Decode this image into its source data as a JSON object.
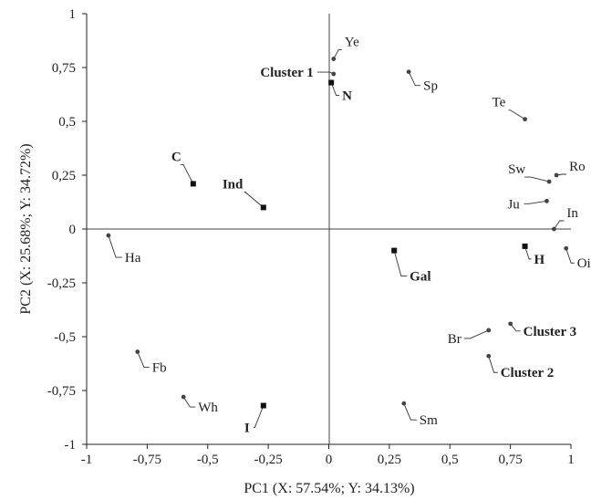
{
  "chart_data": {
    "type": "scatter",
    "title": "",
    "xlabel": "PC1 (X: 57.54%; Y: 34.13%)",
    "ylabel": "PC2 (X: 25.68%; Y: 34.72%)",
    "xlim": [
      -1,
      1
    ],
    "ylim": [
      -1,
      1
    ],
    "x_ticks": [
      "-1",
      "-0,75",
      "-0,5",
      "-0,25",
      "0",
      "0,25",
      "0,5",
      "0,75",
      "1"
    ],
    "y_ticks": [
      "-1",
      "-0,75",
      "-0,5",
      "-0,25",
      "0",
      "0,25",
      "0,5",
      "0,75",
      "1"
    ],
    "grid": false,
    "legend": "none",
    "series": [
      {
        "marker": "circle",
        "points": [
          {
            "label": "Ye",
            "x": 0.02,
            "y": 0.79
          },
          {
            "label": "Sp",
            "x": 0.33,
            "y": 0.73
          },
          {
            "label": "Te",
            "x": 0.81,
            "y": 0.51
          },
          {
            "label": "Ro",
            "x": 0.94,
            "y": 0.25
          },
          {
            "label": "Sw",
            "x": 0.91,
            "y": 0.22
          },
          {
            "label": "Ju",
            "x": 0.9,
            "y": 0.13
          },
          {
            "label": "In",
            "x": 0.93,
            "y": 0.0
          },
          {
            "label": "Oi",
            "x": 0.98,
            "y": -0.09
          },
          {
            "label": "Ha",
            "x": -0.91,
            "y": -0.03
          },
          {
            "label": "Br",
            "x": 0.66,
            "y": -0.47
          },
          {
            "label": "Fb",
            "x": -0.79,
            "y": -0.57
          },
          {
            "label": "Wh",
            "x": -0.6,
            "y": -0.78
          },
          {
            "label": "Sm",
            "x": 0.31,
            "y": -0.81
          }
        ]
      },
      {
        "marker": "square",
        "points": [
          {
            "label": "N",
            "x": 0.01,
            "y": 0.68
          },
          {
            "label": "C",
            "x": -0.56,
            "y": 0.21
          },
          {
            "label": "Ind",
            "x": -0.27,
            "y": 0.1
          },
          {
            "label": "Gal",
            "x": 0.27,
            "y": -0.1
          },
          {
            "label": "H",
            "x": 0.81,
            "y": -0.08
          },
          {
            "label": "I",
            "x": -0.27,
            "y": -0.82
          }
        ]
      },
      {
        "marker": "circle",
        "points": [
          {
            "label": "Cluster 1",
            "x": 0.02,
            "y": 0.72
          },
          {
            "label": "Cluster 3",
            "x": 0.75,
            "y": -0.44
          },
          {
            "label": "Cluster 2",
            "x": 0.66,
            "y": -0.59
          }
        ]
      }
    ]
  }
}
